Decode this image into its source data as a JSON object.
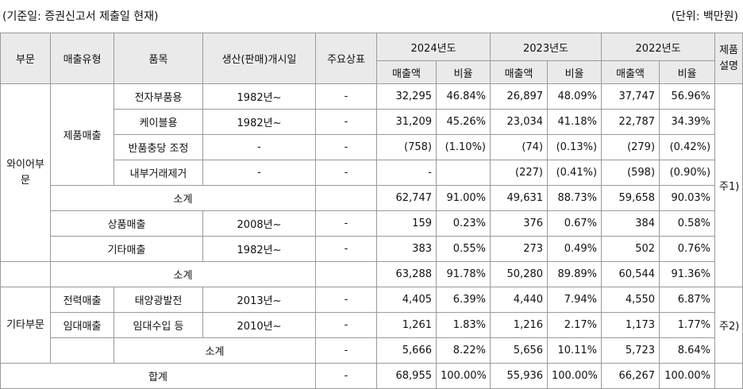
{
  "caption": {
    "left": "(기준일: 증권신고서 제출일 현재)",
    "right": "(단위: 백만원)"
  },
  "headers": {
    "division": "부문",
    "sales_type": "매출유형",
    "item": "품목",
    "start": "생산(판매)개시일",
    "brand": "주요상표",
    "y2024": "2024년도",
    "y2023": "2023년도",
    "y2022": "2022년도",
    "desc": "제품설명",
    "amount": "매출액",
    "ratio": "비율"
  },
  "divisions": {
    "wire": "와이어부문",
    "other": "기타부문"
  },
  "groups": {
    "product_sales": "제품매출",
    "merch_sales": "상품매출",
    "other_sales": "기타매출",
    "power_sales": "전력매출",
    "rent_sales": "임대매출"
  },
  "notes": {
    "n1": "주1)",
    "n2": "주2)"
  },
  "rows": [
    {
      "label": "전자부품용",
      "start": "1982년~",
      "brand": "-",
      "v": [
        "32,295",
        "46.84%",
        "26,897",
        "48.09%",
        "37,747",
        "56.96%"
      ]
    },
    {
      "label": "케이블용",
      "start": "1982년~",
      "brand": "-",
      "v": [
        "31,209",
        "45.26%",
        "23,034",
        "41.18%",
        "22,787",
        "34.39%"
      ]
    },
    {
      "label": "반품충당 조정",
      "start": "-",
      "brand": "-",
      "v": [
        "(758)",
        "(1.10%)",
        "(74)",
        "(0.13%)",
        "(279)",
        "(0.42%)"
      ]
    },
    {
      "label": "내부거래제거",
      "start": "-",
      "brand": "-",
      "v": [
        "-",
        "",
        "(227)",
        "(0.41%)",
        "(598)",
        "(0.90%)"
      ]
    },
    {
      "label": "소계",
      "start": "",
      "brand": "",
      "v": [
        "62,747",
        "91.00%",
        "49,631",
        "88.73%",
        "59,658",
        "90.03%"
      ]
    },
    {
      "label": "상품매출",
      "start": "2008년~",
      "brand": "-",
      "v": [
        "159",
        "0.23%",
        "376",
        "0.67%",
        "384",
        "0.58%"
      ]
    },
    {
      "label": "기타매출",
      "start": "1982년~",
      "brand": "-",
      "v": [
        "383",
        "0.55%",
        "273",
        "0.49%",
        "502",
        "0.76%"
      ]
    },
    {
      "label": "소계",
      "start": "",
      "brand": "",
      "v": [
        "63,288",
        "91.78%",
        "50,280",
        "89.89%",
        "60,544",
        "91.36%"
      ]
    },
    {
      "label": "태양광발전",
      "start": "2013년~",
      "brand": "-",
      "v": [
        "4,405",
        "6.39%",
        "4,440",
        "7.94%",
        "4,550",
        "6.87%"
      ]
    },
    {
      "label": "임대수입 등",
      "start": "2010년~",
      "brand": "-",
      "v": [
        "1,261",
        "1.83%",
        "1,216",
        "2.17%",
        "1,173",
        "1.77%"
      ]
    },
    {
      "label": "소계",
      "start": "",
      "brand": "-",
      "v": [
        "5,666",
        "8.22%",
        "5,656",
        "10.11%",
        "5,723",
        "8.64%"
      ]
    },
    {
      "label": "합계",
      "start": "",
      "brand": "-",
      "v": [
        "68,955",
        "100.00%",
        "55,936",
        "100.00%",
        "66,267",
        "100.00%"
      ]
    }
  ]
}
